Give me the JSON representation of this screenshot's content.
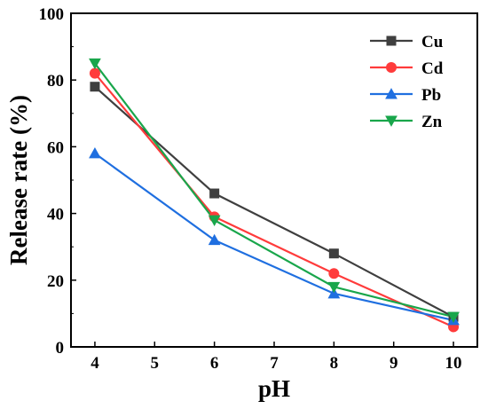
{
  "chart_data": {
    "type": "line",
    "xlabel": "pH",
    "ylabel": "Release rate (%)",
    "x": [
      4,
      6,
      8,
      10
    ],
    "xlim": [
      3.6,
      10.4
    ],
    "ylim": [
      0,
      100
    ],
    "xticks": [
      4,
      5,
      6,
      7,
      8,
      9,
      10
    ],
    "yticks": [
      0,
      20,
      40,
      60,
      80,
      100
    ],
    "grid": false,
    "legend_position": "top-right",
    "series": [
      {
        "name": "Cu",
        "values": [
          78,
          46,
          28,
          9
        ],
        "color": "#3f3f3f",
        "marker": "square"
      },
      {
        "name": "Cd",
        "values": [
          82,
          39,
          22,
          6
        ],
        "color": "#ff3b3b",
        "marker": "circle"
      },
      {
        "name": "Pb",
        "values": [
          58,
          32,
          16,
          8
        ],
        "color": "#1f6fe0",
        "marker": "triangle-up"
      },
      {
        "name": "Zn",
        "values": [
          85,
          38,
          18,
          9
        ],
        "color": "#19a64b",
        "marker": "triangle-down"
      }
    ]
  }
}
